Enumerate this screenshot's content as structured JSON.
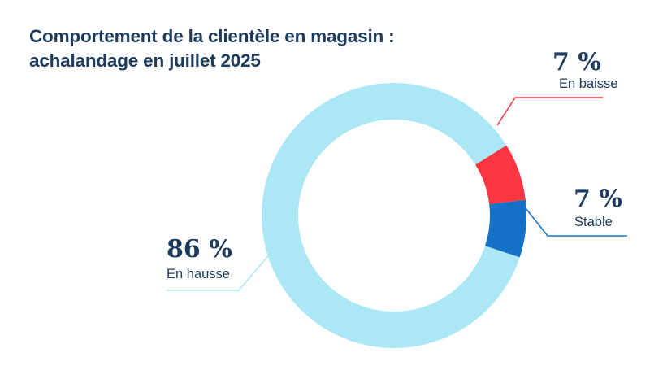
{
  "chart_data": {
    "type": "pie",
    "variant": "donut",
    "title_line1": "Comportement de la clientèle en magasin :",
    "title_line2": "achalandage en juillet 2025",
    "slices": [
      {
        "label": "En baisse",
        "value": 7,
        "display": "7 %",
        "color": "#fb3640"
      },
      {
        "label": "Stable",
        "value": 7,
        "display": "7 %",
        "color": "#1570c7"
      },
      {
        "label": "En hausse",
        "value": 86,
        "display": "86 %",
        "color": "#abe7f4"
      }
    ],
    "units": "%"
  }
}
